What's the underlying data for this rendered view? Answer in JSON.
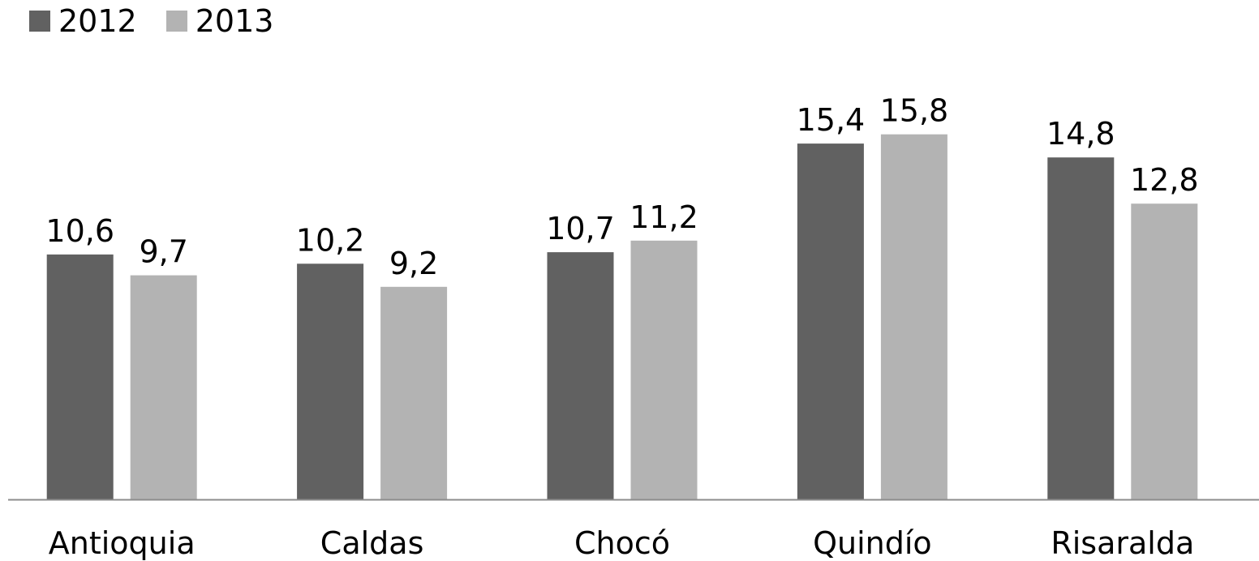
{
  "chart_data": {
    "type": "bar",
    "categories": [
      "Antioquia",
      "Caldas",
      "Chocó",
      "Quindío",
      "Risaralda"
    ],
    "series": [
      {
        "name": "2012",
        "values": [
          10.6,
          10.2,
          10.7,
          15.4,
          14.8
        ],
        "labels": [
          "10,6",
          "10,2",
          "10,7",
          "15,4",
          "14,8"
        ],
        "color": "#616161"
      },
      {
        "name": "2013",
        "values": [
          9.7,
          9.2,
          11.2,
          15.8,
          12.8
        ],
        "labels": [
          "9,7",
          "9,2",
          "11,2",
          "15,8",
          "12,8"
        ],
        "color": "#b3b3b3"
      }
    ],
    "title": "",
    "xlabel": "",
    "ylabel": "",
    "ylim": [
      0,
      16
    ],
    "grid": false,
    "legend": "top-left",
    "axis_color": "#8c8c8c"
  }
}
